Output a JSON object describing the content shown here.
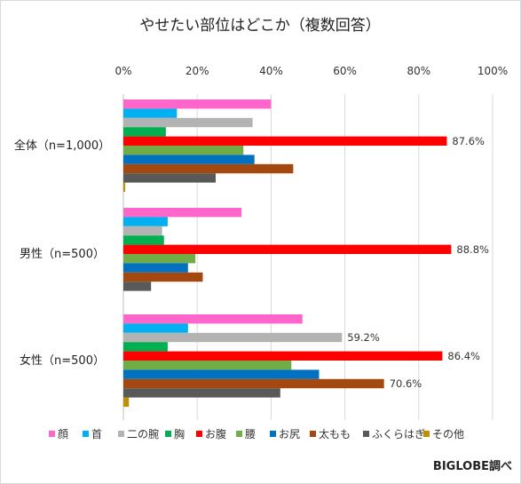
{
  "chart_data": {
    "type": "bar",
    "orientation": "horizontal",
    "title": "やせたい部位はどこか（複数回答）",
    "categories": [
      "全体（n=1,000）",
      "男性（n=500）",
      "女性（n=500）"
    ],
    "x_ticks": [
      "0%",
      "20%",
      "40%",
      "60%",
      "80%",
      "100%"
    ],
    "xlim": [
      0,
      100
    ],
    "x_axis_position": "top",
    "grid": true,
    "legend_position": "bottom",
    "series": [
      {
        "name": "顔",
        "color": "#ff66cc",
        "values": [
          40,
          32,
          48.5
        ]
      },
      {
        "name": "首",
        "color": "#00b0f0",
        "values": [
          14.5,
          12,
          17.5
        ]
      },
      {
        "name": "二の腕",
        "color": "#b3b3b3",
        "values": [
          35,
          10.5,
          59.2
        ]
      },
      {
        "name": "胸",
        "color": "#00b050",
        "values": [
          11.5,
          11,
          12
        ]
      },
      {
        "name": "お腹",
        "color": "#ff0000",
        "values": [
          87.6,
          88.8,
          86.4
        ]
      },
      {
        "name": "腰",
        "color": "#70ad47",
        "values": [
          32.5,
          19.5,
          45.5
        ]
      },
      {
        "name": "お尻",
        "color": "#0070c0",
        "values": [
          35.5,
          17.5,
          53
        ]
      },
      {
        "name": "太もも",
        "color": "#a5480f",
        "values": [
          46,
          21.5,
          70.6
        ]
      },
      {
        "name": "ふくらはぎ",
        "color": "#595959",
        "values": [
          25,
          7.5,
          42.5
        ]
      },
      {
        "name": "その他",
        "color": "#bf9000",
        "values": [
          0.5,
          0,
          1.5
        ]
      }
    ],
    "data_labels": [
      {
        "text": "87.6%",
        "category": 0,
        "series": 4
      },
      {
        "text": "88.8%",
        "category": 1,
        "series": 4
      },
      {
        "text": "59.2%",
        "category": 2,
        "series": 2
      },
      {
        "text": "86.4%",
        "category": 2,
        "series": 4
      },
      {
        "text": "70.6%",
        "category": 2,
        "series": 7
      }
    ]
  },
  "credit": "BIGLOBE調べ"
}
